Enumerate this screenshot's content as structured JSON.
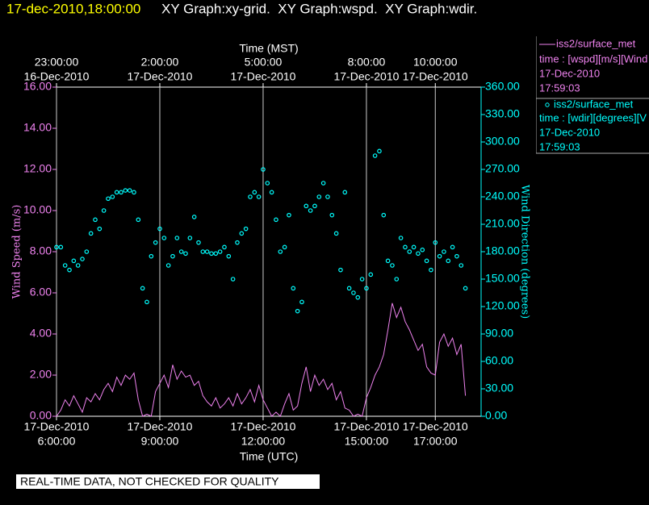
{
  "chart_data": {
    "type": "line",
    "title": "17-dec-2010,18:00:00",
    "graph_labels": "XY Graph:xy-grid.  XY Graph:wspd.  XY Graph:wdir.",
    "xlabel": "Time (UTC)",
    "x2label": "Time (MST)",
    "ylabel": "Wind Speed (m/s)",
    "y2label": "Wind Direction (degrees)",
    "footer": "REAL-TIME DATA, NOT CHECKED FOR QUALITY",
    "grid": true,
    "legend": "right",
    "xlim": [
      6,
      18.33
    ],
    "xticks": [
      {
        "value": 6,
        "label": "6:00:00",
        "date": "17-Dec-2010"
      },
      {
        "value": 9,
        "label": "9:00:00",
        "date": "17-Dec-2010"
      },
      {
        "value": 12,
        "label": "12:00:00",
        "date": "17-Dec-2010"
      },
      {
        "value": 15,
        "label": "15:00:00",
        "date": "17-Dec-2010"
      },
      {
        "value": 17,
        "label": "17:00:00",
        "date": "17-Dec-2010"
      }
    ],
    "x2ticks": [
      {
        "value": 6,
        "label": "23:00:00",
        "date": "16-Dec-2010"
      },
      {
        "value": 9,
        "label": "2:00:00",
        "date": "17-Dec-2010"
      },
      {
        "value": 12,
        "label": "5:00:00",
        "date": "17-Dec-2010"
      },
      {
        "value": 15,
        "label": "8:00:00",
        "date": "17-Dec-2010"
      },
      {
        "value": 17,
        "label": "10:00:00",
        "date": "17-Dec-2010"
      }
    ],
    "ylim": [
      0,
      16
    ],
    "yticks": [
      {
        "value": 0,
        "label": "0.00"
      },
      {
        "value": 2,
        "label": "2.00"
      },
      {
        "value": 4,
        "label": "4.00"
      },
      {
        "value": 6,
        "label": "6.00"
      },
      {
        "value": 8,
        "label": "8.00"
      },
      {
        "value": 10,
        "label": "10.00"
      },
      {
        "value": 12,
        "label": "12.00"
      },
      {
        "value": 14,
        "label": "14.00"
      },
      {
        "value": 16,
        "label": "16.00"
      }
    ],
    "y2lim": [
      0,
      360
    ],
    "y2ticks": [
      {
        "value": 0,
        "label": "0.00"
      },
      {
        "value": 30,
        "label": "30.00"
      },
      {
        "value": 60,
        "label": "60.00"
      },
      {
        "value": 90,
        "label": "90.00"
      },
      {
        "value": 120,
        "label": "120.00"
      },
      {
        "value": 150,
        "label": "150.00"
      },
      {
        "value": 180,
        "label": "180.00"
      },
      {
        "value": 210,
        "label": "210.00"
      },
      {
        "value": 240,
        "label": "240.00"
      },
      {
        "value": 270,
        "label": "270.00"
      },
      {
        "value": 300,
        "label": "300.00"
      },
      {
        "value": 330,
        "label": "330.00"
      },
      {
        "value": 360,
        "label": "360.00"
      }
    ],
    "x": [
      6,
      6.125,
      6.25,
      6.375,
      6.5,
      6.625,
      6.75,
      6.875,
      7,
      7.125,
      7.25,
      7.375,
      7.5,
      7.625,
      7.75,
      7.875,
      8,
      8.125,
      8.25,
      8.375,
      8.5,
      8.625,
      8.75,
      8.875,
      9,
      9.125,
      9.25,
      9.375,
      9.5,
      9.625,
      9.75,
      9.875,
      10,
      10.125,
      10.25,
      10.375,
      10.5,
      10.625,
      10.75,
      10.875,
      11,
      11.125,
      11.25,
      11.375,
      11.5,
      11.625,
      11.75,
      11.875,
      12,
      12.125,
      12.25,
      12.375,
      12.5,
      12.625,
      12.75,
      12.875,
      13,
      13.125,
      13.25,
      13.375,
      13.5,
      13.625,
      13.75,
      13.875,
      14,
      14.125,
      14.25,
      14.375,
      14.5,
      14.625,
      14.75,
      14.875,
      15,
      15.125,
      15.25,
      15.375,
      15.5,
      15.625,
      15.75,
      15.875,
      16,
      16.125,
      16.25,
      16.375,
      16.5,
      16.625,
      16.75,
      16.875,
      17,
      17.125,
      17.25,
      17.375,
      17.5,
      17.625,
      17.75,
      17.875
    ],
    "series": [
      {
        "name": "iss2/surface_met",
        "type": "line",
        "color": "#ee82ee",
        "axis": "y",
        "detail": "time : [wspd][m/s][Wind",
        "date": "17-Dec-2010",
        "time": "17:59:03",
        "values": [
          0,
          0.3,
          0.8,
          0.5,
          1,
          0.6,
          0.2,
          0.9,
          0.7,
          1.1,
          0.8,
          1.3,
          1.6,
          1.2,
          1.9,
          1.5,
          2,
          1.8,
          2.1,
          0.8,
          0,
          0.1,
          0,
          1.2,
          1.6,
          2,
          1.4,
          2.5,
          1.8,
          2.2,
          1.9,
          2,
          1.5,
          1.7,
          1,
          0.7,
          0.5,
          0.9,
          0.4,
          0.6,
          0.9,
          0.5,
          1.1,
          0.6,
          0.9,
          1.3,
          0.7,
          1.5,
          0.8,
          0.4,
          0,
          0.2,
          0,
          0.6,
          1.1,
          0.3,
          0.5,
          1.6,
          2.4,
          1.2,
          2,
          1.5,
          1.8,
          1.3,
          1.6,
          0.8,
          1.2,
          0.4,
          0.3,
          0,
          0.1,
          0,
          0.9,
          1.4,
          2,
          2.4,
          3,
          4.2,
          5.5,
          4.8,
          5.3,
          4.6,
          4.2,
          3.7,
          3.2,
          3.5,
          2.4,
          2.1,
          2,
          3.6,
          4,
          3.4,
          3.8,
          3,
          3.5,
          1
        ]
      },
      {
        "name": "iss2/surface_met",
        "type": "scatter",
        "color": "#00ffff",
        "axis": "y2",
        "detail": "time : [wdir][degrees][V",
        "date": "17-Dec-2010",
        "time": "17:59:03",
        "values": [
          185,
          185,
          165,
          160,
          170,
          165,
          172,
          180,
          200,
          215,
          205,
          225,
          238,
          240,
          245,
          245,
          247,
          247,
          245,
          215,
          140,
          125,
          175,
          190,
          205,
          195,
          165,
          175,
          195,
          180,
          178,
          195,
          218,
          190,
          180,
          180,
          178,
          178,
          180,
          185,
          175,
          150,
          190,
          200,
          205,
          240,
          245,
          240,
          270,
          255,
          245,
          215,
          180,
          185,
          220,
          140,
          115,
          125,
          230,
          225,
          230,
          240,
          255,
          240,
          220,
          200,
          160,
          245,
          140,
          135,
          130,
          150,
          140,
          155,
          285,
          290,
          220,
          170,
          165,
          150,
          195,
          185,
          180,
          185,
          178,
          182,
          170,
          160,
          190,
          175,
          180,
          170,
          185,
          175,
          165,
          140
        ]
      }
    ]
  }
}
